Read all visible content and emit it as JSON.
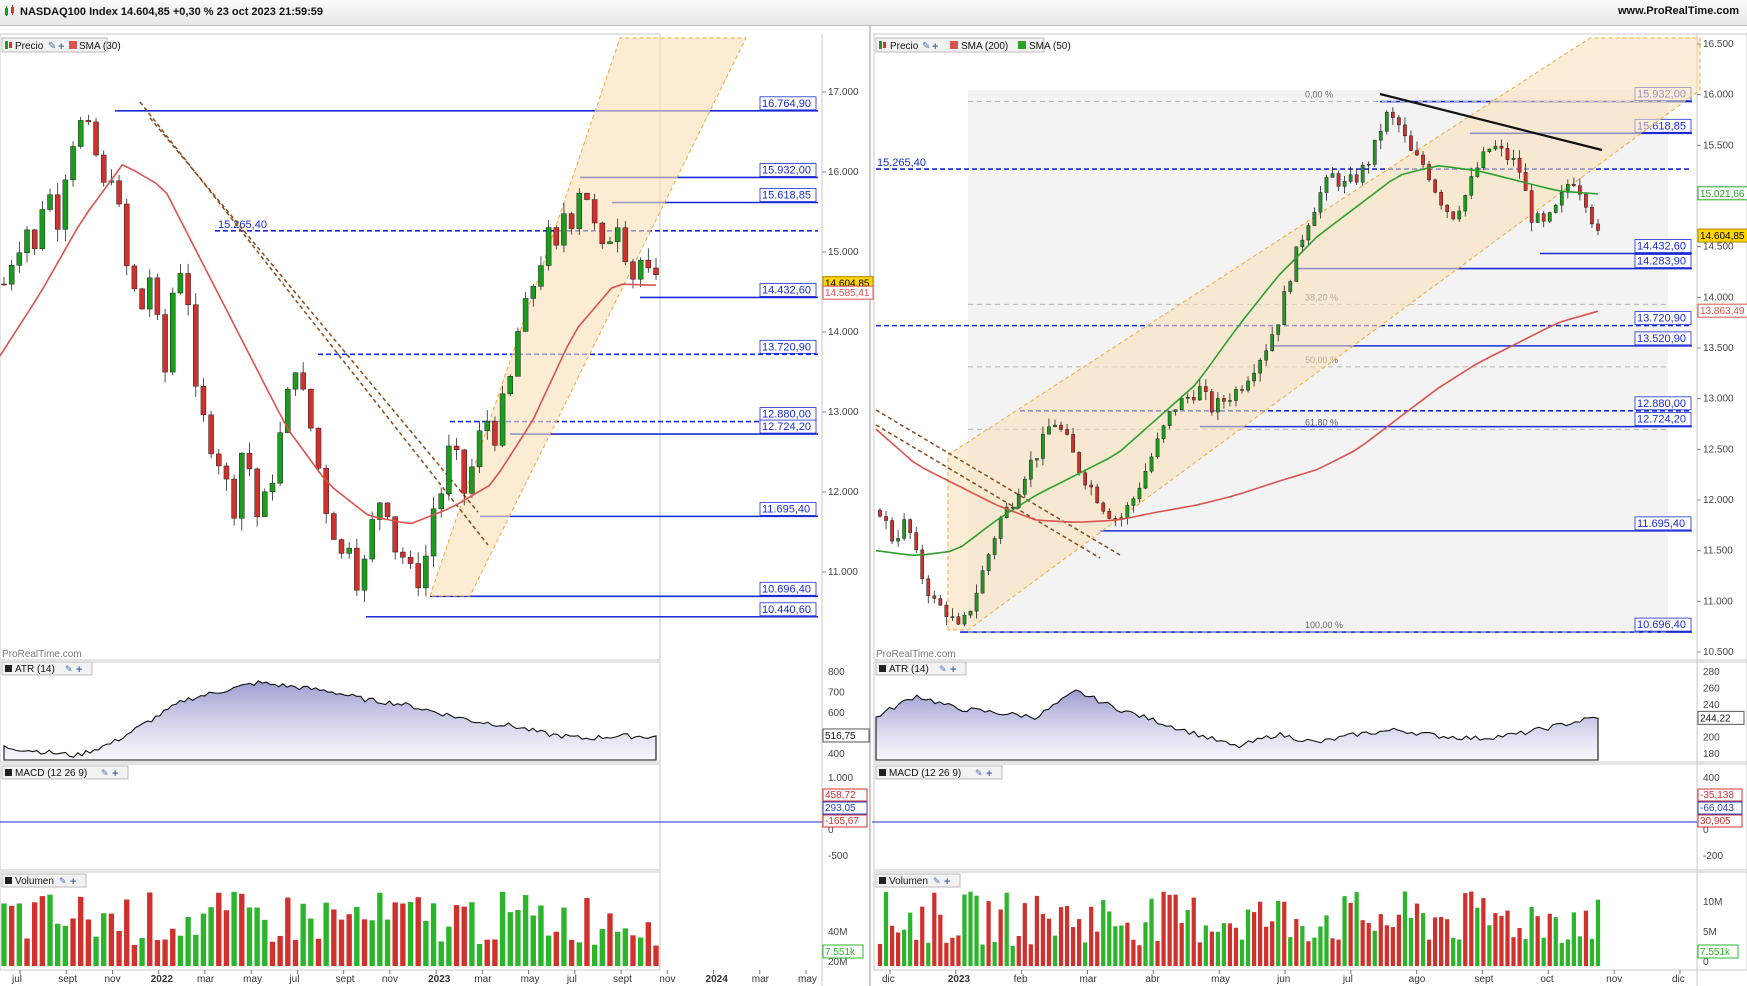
{
  "window": {
    "title": "NASDAQ100 Index 14.604,85 +0,30 % 23 oct 2023 21:59:59",
    "site": "www.ProRealTime.com"
  },
  "left_chart": {
    "watermark": "ProRealTime.com",
    "legend_price": {
      "label": "Precio"
    },
    "legend_sma": {
      "label": "SMA (30)",
      "color": "#d9534f"
    },
    "price_axis": {
      "min": 10000,
      "max": 17600,
      "ticks": [
        11000,
        12000,
        13000,
        14000,
        15000,
        16000,
        17000
      ],
      "tick_labels": [
        "11.000",
        "12.000",
        "13.000",
        "14.000",
        "15.000",
        "16.000",
        "17.000"
      ]
    },
    "price_badge": {
      "value": 14604.85,
      "label": "14.604,85",
      "color": "#ffd400"
    },
    "sma_badge": {
      "value": 14585.41,
      "label": "14.585,41"
    },
    "levels": [
      {
        "value": 16764.9,
        "label": "16.764,90",
        "style": "solid"
      },
      {
        "value": 15932.0,
        "label": "15.932,00",
        "style": "solid"
      },
      {
        "value": 15618.85,
        "label": "15.618,85",
        "style": "solid"
      },
      {
        "value": 15265.4,
        "label": "15.265,40",
        "style": "dashed"
      },
      {
        "value": 14432.6,
        "label": "14.432,60",
        "style": "solid"
      },
      {
        "value": 13720.9,
        "label": "13.720,90",
        "style": "dashed"
      },
      {
        "value": 12880.0,
        "label": "12.880,00",
        "style": "dashed"
      },
      {
        "value": 12724.2,
        "label": "12.724,20",
        "style": "solid"
      },
      {
        "value": 11695.4,
        "label": "11.695,40",
        "style": "solid"
      },
      {
        "value": 10696.4,
        "label": "10.696,40",
        "style": "solid"
      },
      {
        "value": 10440.6,
        "label": "10.440,60",
        "style": "solid"
      }
    ],
    "x_labels": [
      "jul",
      "sept",
      "nov",
      "2022",
      "mar",
      "may",
      "jul",
      "sept",
      "nov",
      "2023",
      "mar",
      "may",
      "jul",
      "sept",
      "nov",
      "2024",
      "mar",
      "may"
    ],
    "atr": {
      "label": "ATR (14)",
      "ticks": [
        "400",
        "500",
        "600",
        "700",
        "800"
      ],
      "value_label": "516,75"
    },
    "macd": {
      "label": "MACD (12 26 9)",
      "ticks": [
        "-500",
        "0",
        "500",
        "1.000"
      ],
      "labels": [
        "458,72",
        "293,05",
        "-165,67"
      ]
    },
    "volume": {
      "label": "Volumen",
      "ticks": [
        "20M",
        "40M"
      ],
      "value_label": "7.551k"
    }
  },
  "right_chart": {
    "watermark": "ProRealTime.com",
    "legend_price": {
      "label": "Precio"
    },
    "legend_sma200": {
      "label": "SMA (200)",
      "color": "#d9534f"
    },
    "legend_sma50": {
      "label": "SMA (50)",
      "color": "#2ca02c"
    },
    "price_axis": {
      "min": 10500,
      "max": 16500,
      "ticks": [
        10500,
        11000,
        11500,
        12000,
        12500,
        13000,
        13500,
        14000,
        14500,
        15000,
        15500,
        16000,
        16500
      ],
      "tick_labels": [
        "10.500",
        "11.000",
        "11.500",
        "12.000",
        "12.500",
        "13.000",
        "13.500",
        "14.000",
        "14.500",
        "15.000",
        "15.500",
        "16.000",
        "16.500"
      ]
    },
    "price_badge": {
      "value": 14604.85,
      "label": "14.604,85",
      "color": "#ffd400"
    },
    "sma50_badge": {
      "value": 15021.66,
      "label": "15.021,66"
    },
    "sma200_badge": {
      "value": 13863.49,
      "label": "13.863,49"
    },
    "levels": [
      {
        "value": 15932.0,
        "label": "15.932,00",
        "style": "solid"
      },
      {
        "value": 15618.85,
        "label": "15.618,85",
        "style": "solid"
      },
      {
        "value": 15265.4,
        "label": "15.265,40",
        "style": "dashed"
      },
      {
        "value": 14432.6,
        "label": "14.432,60",
        "style": "solid"
      },
      {
        "value": 14283.9,
        "label": "14.283,90",
        "style": "solid"
      },
      {
        "value": 13720.9,
        "label": "13.720,90",
        "style": "dashed"
      },
      {
        "value": 13520.9,
        "label": "13.520,90",
        "style": "solid"
      },
      {
        "value": 12880.0,
        "label": "12.880,00",
        "style": "dashed"
      },
      {
        "value": 12724.2,
        "label": "12.724,20",
        "style": "solid"
      },
      {
        "value": 11695.4,
        "label": "11.695,40",
        "style": "solid"
      },
      {
        "value": 10696.4,
        "label": "10.696,40",
        "style": "solid"
      }
    ],
    "fib": [
      {
        "value": 15932.0,
        "label": "0,00 %"
      },
      {
        "value": 13930.0,
        "label": "38,20 %"
      },
      {
        "value": 13314.0,
        "label": "50,00 %"
      },
      {
        "value": 12697.0,
        "label": "61,80 %"
      },
      {
        "value": 10696.4,
        "label": "100,00 %"
      }
    ],
    "x_labels": [
      "dic",
      "2023",
      "feb",
      "mar",
      "abr",
      "may",
      "jun",
      "jul",
      "ago",
      "sept",
      "oct",
      "nov",
      "dic"
    ],
    "atr": {
      "label": "ATR (14)",
      "ticks": [
        "180",
        "200",
        "220",
        "240",
        "260",
        "280"
      ],
      "value_label": "244,22"
    },
    "macd": {
      "label": "MACD (12 26 9)",
      "ticks": [
        "-200",
        "0",
        "200",
        "400"
      ],
      "labels": [
        "-35,138",
        "-66,043",
        "30,905"
      ]
    },
    "volume": {
      "label": "Volumen",
      "ticks": [
        "0",
        "5M",
        "10M"
      ],
      "value_label": "7.551k"
    }
  },
  "chart_data": [
    {
      "type": "candlestick",
      "title": "NASDAQ100 Index",
      "timeframe": "weekly",
      "x_range": [
        "jul 2021",
        "may 2024"
      ],
      "ylim": [
        10000,
        17600
      ],
      "close": 14604.85,
      "indicators": [
        "SMA (30)",
        "ATR (14)",
        "MACD (12 26 9)",
        "Volumen"
      ],
      "series": [
        {
          "name": "Precio",
          "values": [
            14600,
            14900,
            15100,
            15300,
            15000,
            15600,
            15700,
            15400,
            16000,
            16400,
            16600,
            16500,
            16200,
            15800,
            16000,
            15500,
            14800,
            14500,
            14300,
            14700,
            14100,
            13500,
            14500,
            14800,
            14400,
            13200,
            12900,
            12600,
            12400,
            12100,
            11800,
            12500,
            12300,
            11700,
            11900,
            12200,
            12700,
            13200,
            13600,
            13200,
            12800,
            12300,
            11800,
            11500,
            11200,
            11400,
            10900,
            11100,
            11600,
            11900,
            11800,
            11300,
            11200,
            11000,
            10900,
            11200,
            11800,
            12000,
            12500,
            12400,
            12000,
            12300,
            12700,
            12900,
            12700,
            13100,
            13400,
            14000,
            14300,
            14600,
            14900,
            15200,
            15000,
            15500,
            15400,
            15800,
            15700,
            15300,
            15000,
            15200,
            15400,
            15000,
            14700,
            14900,
            14700,
            14600
          ]
        },
        {
          "name": "SMA (30)",
          "values": [
            13700,
            14500,
            15400,
            16100,
            15800,
            14800,
            13800,
            12800,
            12100,
            11700,
            11600,
            11800,
            12100,
            12900,
            14000,
            14600,
            14585
          ]
        }
      ]
    },
    {
      "type": "candlestick",
      "title": "NASDAQ100 Index",
      "timeframe": "daily",
      "x_range": [
        "dic 2022",
        "dic 2023"
      ],
      "ylim": [
        10500,
        16500
      ],
      "close": 14604.85,
      "indicators": [
        "SMA (200)",
        "SMA (50)",
        "ATR (14)",
        "MACD (12 26 9)",
        "Volumen"
      ],
      "series": [
        {
          "name": "Precio",
          "values": [
            11900,
            11600,
            11800,
            11300,
            11000,
            10900,
            10700,
            11000,
            11400,
            11800,
            12000,
            12300,
            12500,
            12800,
            12600,
            12300,
            12100,
            11900,
            11800,
            12000,
            12300,
            12600,
            12900,
            13000,
            13100,
            12900,
            13000,
            13100,
            13300,
            13500,
            13800,
            14300,
            14700,
            15000,
            15200,
            15100,
            15200,
            15400,
            15800,
            15700,
            15400,
            15300,
            15000,
            14800,
            15000,
            15300,
            15500,
            15400,
            15300,
            14800,
            14700,
            14900,
            15200,
            15000,
            14600
          ]
        },
        {
          "name": "SMA (200)",
          "values": [
            12700,
            12350,
            12150,
            11950,
            11800,
            11780,
            11800,
            11880,
            11950,
            12050,
            12180,
            12300,
            12500,
            12800,
            13100,
            13350,
            13550,
            13750,
            13863
          ]
        },
        {
          "name": "SMA (50)",
          "values": [
            11500,
            11450,
            11500,
            11800,
            12050,
            12250,
            12450,
            12800,
            13150,
            13700,
            14200,
            14600,
            14900,
            15200,
            15300,
            15250,
            15150,
            15050,
            15021
          ]
        }
      ]
    }
  ]
}
